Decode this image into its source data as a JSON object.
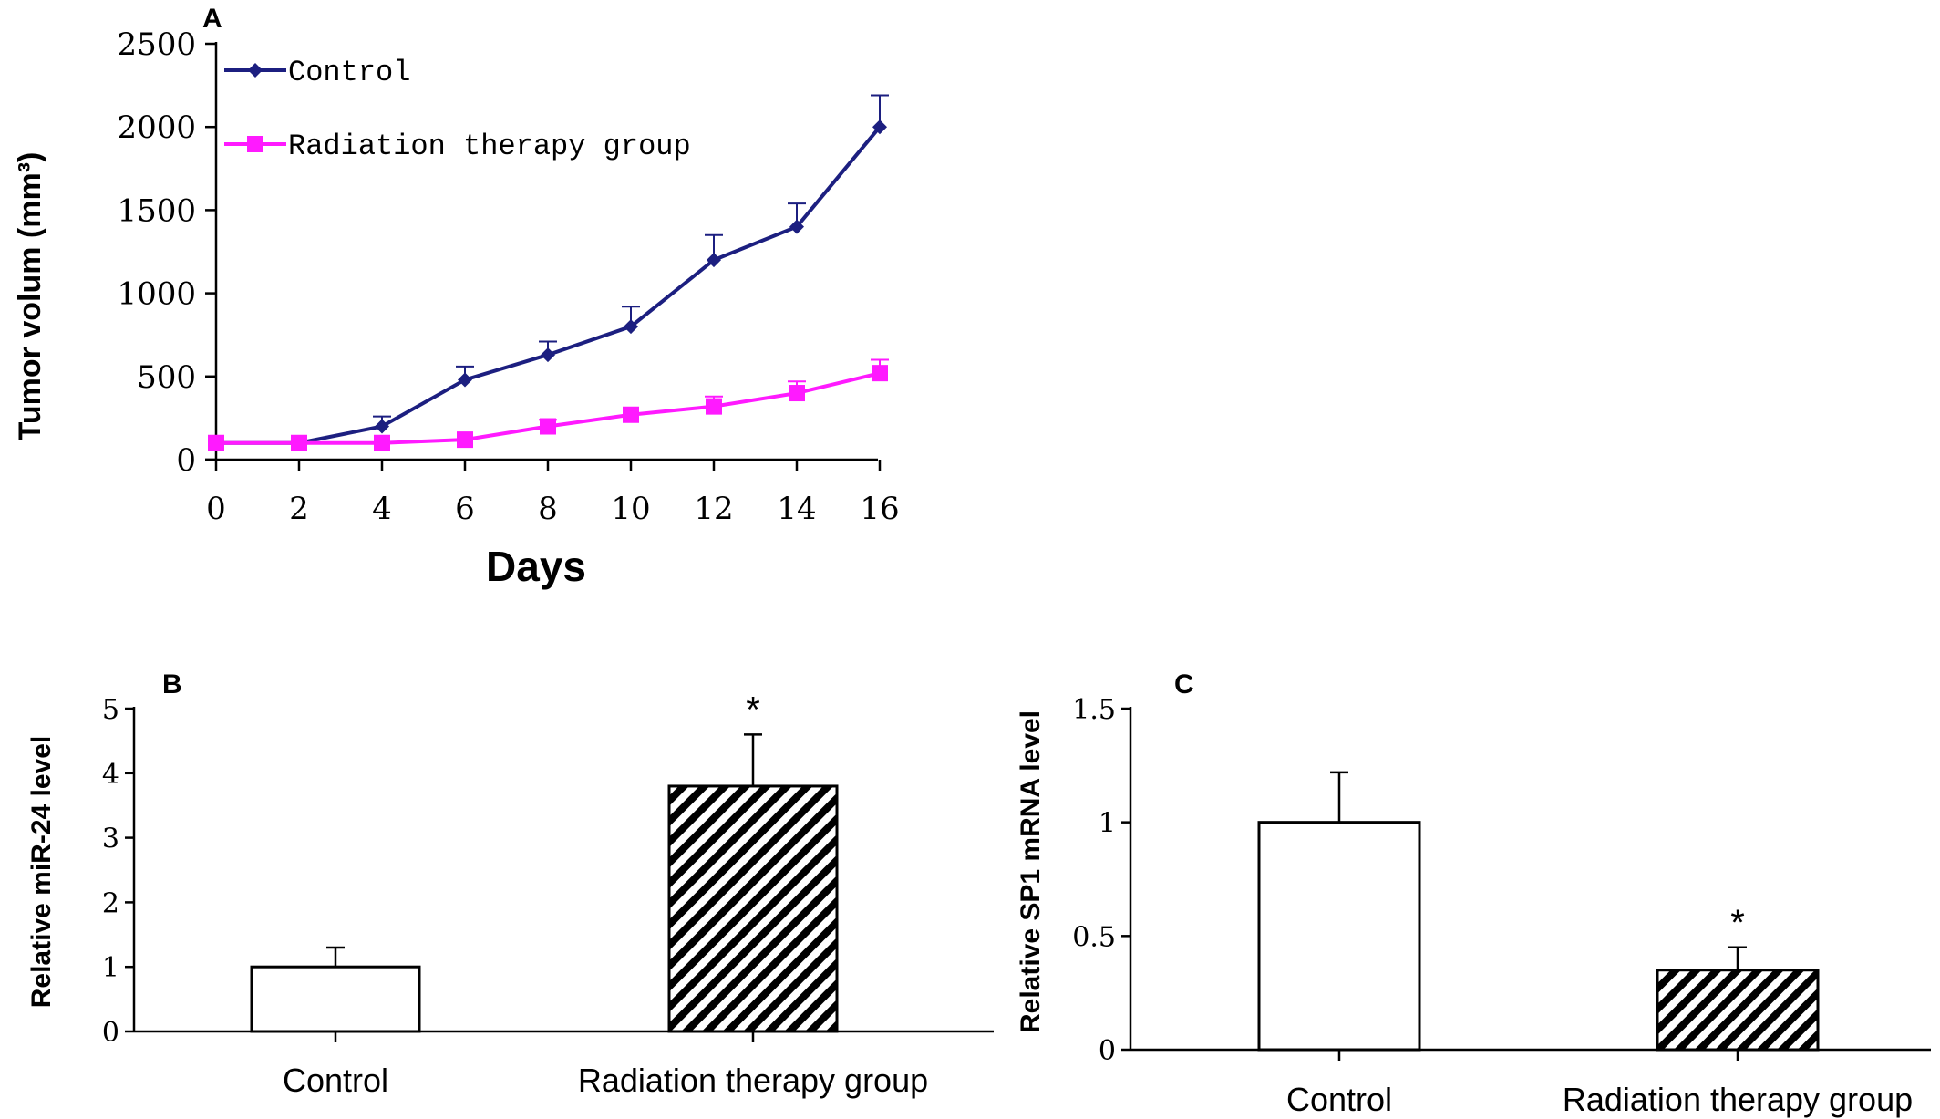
{
  "chart_data": [
    {
      "panel": "A",
      "type": "line",
      "ylabel": "Tumor volum (mm³)",
      "xlabel": "Days",
      "x": [
        0,
        2,
        4,
        6,
        8,
        10,
        12,
        14,
        16
      ],
      "xticks": [
        "0",
        "2",
        "4",
        "6",
        "8",
        "10",
        "12",
        "14",
        "16"
      ],
      "ylim": [
        0,
        2500
      ],
      "yticks": [
        "0",
        "500",
        "1000",
        "1500",
        "2000",
        "2500"
      ],
      "legend_position": "top-left",
      "series": [
        {
          "name": "Control",
          "color": "#1c1f80",
          "marker": "diamond",
          "values": [
            100,
            100,
            200,
            480,
            630,
            800,
            1200,
            1400,
            2000
          ],
          "errors": [
            0,
            0,
            60,
            80,
            80,
            120,
            150,
            140,
            190
          ]
        },
        {
          "name": "Radiation therapy group",
          "color": "#ff1aff",
          "marker": "square",
          "values": [
            100,
            100,
            100,
            120,
            200,
            270,
            320,
            400,
            520
          ],
          "errors": [
            0,
            0,
            0,
            0,
            40,
            0,
            60,
            70,
            80
          ]
        }
      ]
    },
    {
      "panel": "B",
      "type": "bar",
      "ylabel": "Relative miR-24 level",
      "categories": [
        "Control",
        "Radiation therapy group"
      ],
      "values": [
        1.0,
        3.8
      ],
      "errors": [
        0.3,
        0.8
      ],
      "fills": [
        "plain",
        "hatched"
      ],
      "significance": [
        "",
        "*"
      ],
      "ylim": [
        0,
        5
      ],
      "yticks": [
        "0",
        "1",
        "2",
        "3",
        "4",
        "5"
      ]
    },
    {
      "panel": "C",
      "type": "bar",
      "ylabel": "Relative SP1 mRNA level",
      "categories": [
        "Control",
        "Radiation therapy group"
      ],
      "values": [
        1.0,
        0.35
      ],
      "errors": [
        0.22,
        0.1
      ],
      "fills": [
        "plain",
        "hatched"
      ],
      "significance": [
        "",
        "*"
      ],
      "ylim": [
        0,
        1.5
      ],
      "yticks": [
        "0",
        "0.5",
        "1",
        "1.5"
      ]
    }
  ]
}
